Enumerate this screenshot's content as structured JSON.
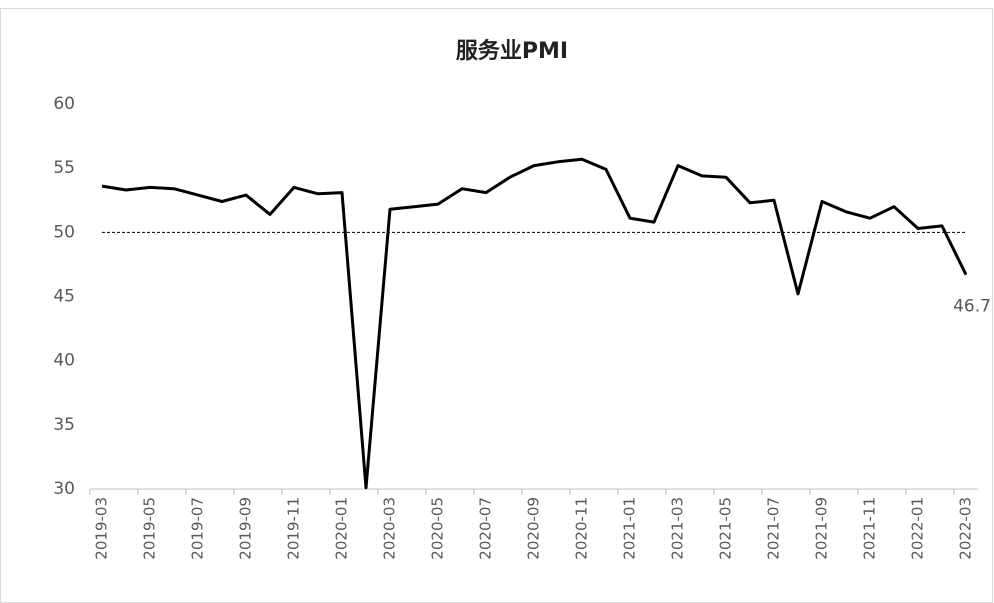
{
  "chart_data": {
    "type": "line",
    "title": "服务业PMI",
    "categories": [
      "2019-03",
      null,
      "2019-05",
      null,
      "2019-07",
      null,
      "2019-09",
      null,
      "2019-11",
      null,
      "2020-01",
      null,
      "2020-03",
      null,
      "2020-05",
      null,
      "2020-07",
      null,
      "2020-09",
      null,
      "2020-11",
      null,
      "2021-01",
      null,
      "2021-03",
      null,
      "2021-05",
      null,
      "2021-07",
      null,
      "2021-09",
      null,
      "2021-11",
      null,
      "2022-01",
      null,
      "2022-03"
    ],
    "series": [
      {
        "name": "服务业PMI",
        "color": "#000000",
        "values": [
          53.6,
          53.3,
          53.5,
          53.4,
          52.9,
          52.4,
          52.9,
          51.4,
          53.5,
          53.0,
          53.1,
          30.1,
          51.8,
          52.0,
          52.2,
          53.4,
          53.1,
          54.3,
          55.2,
          55.5,
          55.7,
          54.9,
          51.1,
          50.8,
          55.2,
          54.4,
          54.3,
          52.3,
          52.5,
          45.2,
          52.4,
          51.6,
          51.1,
          52.0,
          50.3,
          50.5,
          46.7
        ],
        "value_labels": [
          null,
          null,
          null,
          null,
          null,
          null,
          null,
          null,
          null,
          null,
          null,
          null,
          null,
          null,
          null,
          null,
          null,
          null,
          null,
          null,
          null,
          null,
          null,
          null,
          null,
          null,
          null,
          null,
          null,
          null,
          null,
          null,
          null,
          null,
          null,
          null,
          "46.7"
        ]
      }
    ],
    "reference_line": 50,
    "ylim": [
      30,
      60
    ],
    "yticks": [
      30,
      35,
      40,
      45,
      50,
      55,
      60
    ],
    "grid": false
  }
}
